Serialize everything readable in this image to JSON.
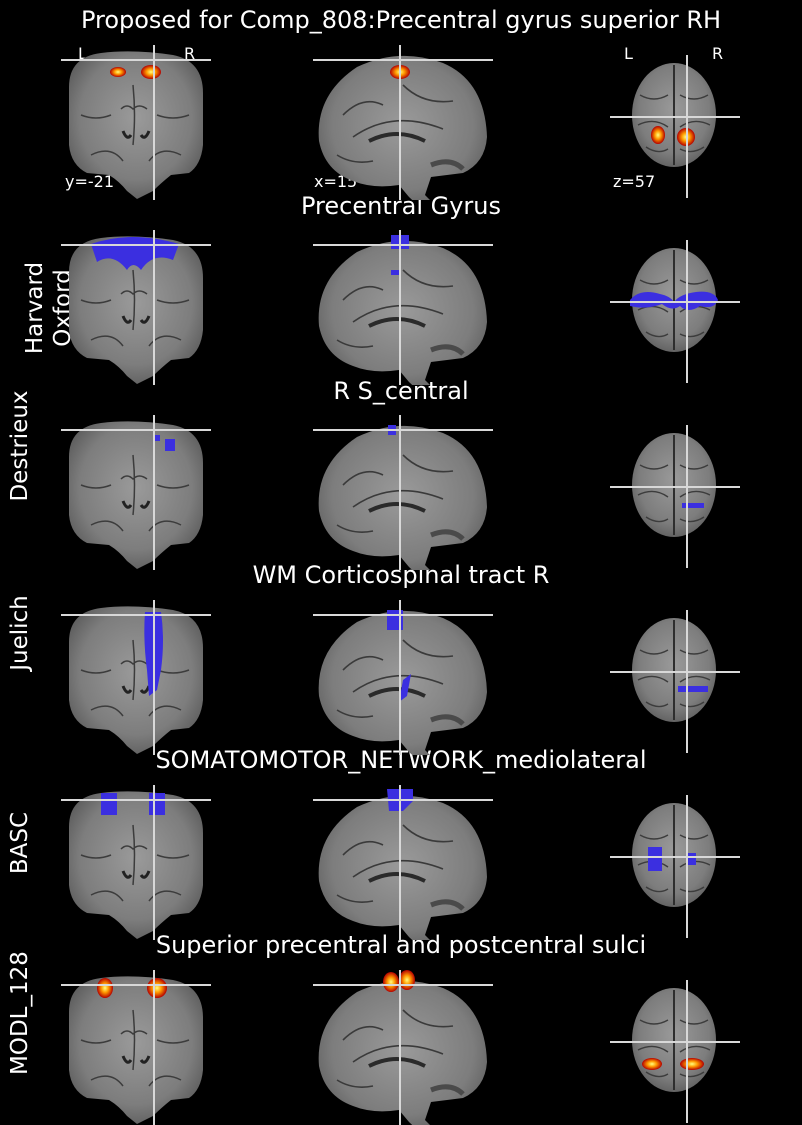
{
  "figure": {
    "main_title": "Proposed for Comp_808:Precentral gyrus superior RH",
    "orientation": {
      "left": "L",
      "right": "R"
    },
    "coords": {
      "y": "y=-21",
      "x": "x=15",
      "z": "z=57"
    }
  },
  "rows": [
    {
      "atlas": "",
      "region": "",
      "overlay": "heat"
    },
    {
      "atlas": "Harvard\nOxford",
      "region": "Precentral Gyrus",
      "overlay": "blue"
    },
    {
      "atlas": "Destrieux",
      "region": "R S_central",
      "overlay": "blue"
    },
    {
      "atlas": "Juelich",
      "region": "WM Corticospinal tract R",
      "overlay": "blue"
    },
    {
      "atlas": "BASC",
      "region": "SOMATOMOTOR_NETWORK_mediolateral",
      "overlay": "blue"
    },
    {
      "atlas": "MODL_128",
      "region": "Superior precentral and postcentral sulci",
      "overlay": "heat"
    }
  ],
  "colors": {
    "background": "#000000",
    "crosshair": "#d8d8d8",
    "atlas_overlay": "#3b2fe0",
    "heat_low": "#b40000",
    "heat_high": "#ffff80"
  }
}
